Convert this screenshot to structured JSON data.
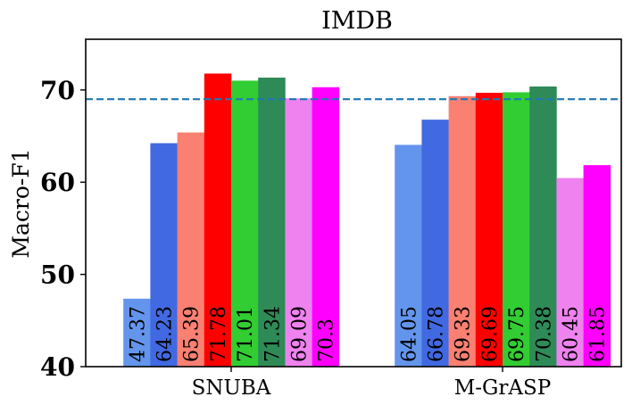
{
  "chart_data": {
    "type": "bar",
    "title": "IMDB",
    "xlabel": "",
    "ylabel": "Macro-F1",
    "ylim": [
      40,
      75.5
    ],
    "yticks": [
      40,
      50,
      60,
      70
    ],
    "categories": [
      "SNUBA",
      "M-GrASP"
    ],
    "series": [
      {
        "name": "method-1",
        "color": "#6495ED",
        "values": [
          47.37,
          64.05
        ],
        "labels": [
          "47.37",
          "64.05"
        ]
      },
      {
        "name": "method-2",
        "color": "#4169E1",
        "values": [
          64.23,
          66.78
        ],
        "labels": [
          "64.23",
          "66.78"
        ]
      },
      {
        "name": "method-3",
        "color": "#FA8072",
        "values": [
          65.39,
          69.33
        ],
        "labels": [
          "65.39",
          "69.33"
        ]
      },
      {
        "name": "method-4",
        "color": "#FF0000",
        "values": [
          71.78,
          69.69
        ],
        "labels": [
          "71.78",
          "69.69"
        ]
      },
      {
        "name": "method-5",
        "color": "#32CD32",
        "values": [
          71.01,
          69.75
        ],
        "labels": [
          "71.01",
          "69.75"
        ]
      },
      {
        "name": "method-6",
        "color": "#2E8B57",
        "values": [
          71.34,
          70.38
        ],
        "labels": [
          "71.34",
          "70.38"
        ]
      },
      {
        "name": "method-7",
        "color": "#EE82EE",
        "values": [
          69.09,
          60.45
        ],
        "labels": [
          "69.09",
          "60.45"
        ]
      },
      {
        "name": "method-8",
        "color": "#FF00FF",
        "values": [
          70.3,
          61.85
        ],
        "labels": [
          "70.3",
          "61.85"
        ]
      }
    ],
    "reference_line": {
      "value": 69.0,
      "color": "#1f77b4",
      "style": "dashed"
    },
    "grid": false,
    "legend": "none"
  }
}
